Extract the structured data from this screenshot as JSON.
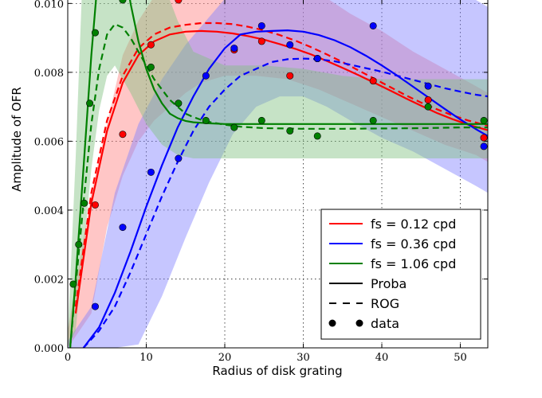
{
  "chart_data": {
    "type": "scatter",
    "xlabel": "Radius of disk grating",
    "ylabel": "Amplitude of OFR",
    "xlim": [
      0,
      53.5
    ],
    "ylim": [
      0,
      0.0101
    ],
    "x_ticks": [
      0,
      10,
      20,
      30,
      40,
      50
    ],
    "x_tick_labels": [
      "0",
      "10",
      "20",
      "30",
      "40",
      "50"
    ],
    "y_ticks": [
      0,
      0.002,
      0.004,
      0.006,
      0.008,
      0.01
    ],
    "y_tick_labels": [
      "0.000",
      "0.002",
      "0.004",
      "0.006",
      "0.008",
      "0.010"
    ],
    "grid": true,
    "legend_position": "lower-right",
    "legend": {
      "entries": [
        {
          "label": "fs = 0.12 cpd",
          "style": "line",
          "color": "#ff0000"
        },
        {
          "label": "fs = 0.36 cpd",
          "style": "line",
          "color": "#0000ff"
        },
        {
          "label": "fs = 1.06 cpd",
          "style": "line",
          "color": "#008000"
        },
        {
          "label": "Proba",
          "style": "solid",
          "color": "#000000"
        },
        {
          "label": "ROG",
          "style": "dashed",
          "color": "#000000"
        },
        {
          "label": "data",
          "style": "markers",
          "color": "#000000"
        }
      ]
    },
    "series": [
      {
        "color": "#ff0000",
        "band_color": "#ff8080",
        "data_x": [
          3.5,
          7,
          10.6,
          14.1,
          21.2,
          24.7,
          28.3,
          31.8,
          38.9,
          45.9,
          53
        ],
        "data_y": [
          0.00415,
          0.0062,
          0.0088,
          0.0101,
          0.00865,
          0.0089,
          0.0079,
          0.0084,
          0.00775,
          0.0072,
          0.0061
        ],
        "proba_x": [
          1,
          3,
          5,
          7,
          9,
          11,
          13,
          15,
          17,
          19,
          21,
          23,
          25,
          27,
          29,
          31,
          33,
          35,
          37,
          39,
          41,
          43,
          45,
          47,
          49,
          51,
          53.5
        ],
        "proba_y": [
          0.001,
          0.0042,
          0.0063,
          0.0077,
          0.0085,
          0.0089,
          0.0091,
          0.00918,
          0.0092,
          0.00918,
          0.00913,
          0.00905,
          0.00895,
          0.00882,
          0.00868,
          0.00852,
          0.00833,
          0.00813,
          0.00792,
          0.0077,
          0.00748,
          0.00725,
          0.00703,
          0.00682,
          0.00664,
          0.00648,
          0.00632
        ],
        "rog_x": [
          1,
          3,
          5,
          7,
          9,
          11,
          13,
          15,
          17,
          19,
          21,
          23,
          25,
          27,
          29,
          31,
          33,
          35,
          37,
          39,
          41,
          43,
          45,
          47,
          49,
          51,
          53.5
        ],
        "rog_y": [
          0.0012,
          0.0045,
          0.0066,
          0.0079,
          0.0087,
          0.0091,
          0.0093,
          0.00938,
          0.00943,
          0.00943,
          0.0094,
          0.00932,
          0.00922,
          0.00908,
          0.00892,
          0.00873,
          0.00852,
          0.0083,
          0.00806,
          0.00782,
          0.00758,
          0.00734,
          0.00712,
          0.00693,
          0.00675,
          0.0066,
          0.00645
        ],
        "band_x": [
          0,
          3,
          5,
          7,
          9,
          11,
          13,
          15,
          17,
          20,
          24,
          28,
          32,
          36,
          40,
          44,
          48,
          52,
          53.5
        ],
        "band_upper": [
          0.0005,
          0.0045,
          0.0065,
          0.0085,
          0.0095,
          0.0102,
          0.0107,
          0.0112,
          0.0115,
          0.0117,
          0.0117,
          0.0108,
          0.0103,
          0.0097,
          0.0092,
          0.0086,
          0.0081,
          0.0076,
          0.0074
        ],
        "band_lower": [
          0,
          0.001,
          0.0035,
          0.005,
          0.006,
          0.0066,
          0.007,
          0.0074,
          0.0077,
          0.0079,
          0.0079,
          0.0078,
          0.0075,
          0.0071,
          0.0067,
          0.0063,
          0.0059,
          0.0056,
          0.0054
        ]
      },
      {
        "color": "#0000ff",
        "band_color": "#8080ff",
        "data_x": [
          3.5,
          7,
          10.6,
          14.1,
          17.6,
          21.2,
          24.7,
          28.3,
          31.8,
          38.9,
          45.9,
          53
        ],
        "data_y": [
          0.0012,
          0.0035,
          0.0051,
          0.0055,
          0.0079,
          0.0087,
          0.00935,
          0.0088,
          0.0084,
          0.00935,
          0.0076,
          0.00585
        ],
        "proba_x": [
          2,
          4,
          6,
          8,
          10,
          12,
          14,
          16,
          18,
          20,
          22,
          24,
          26,
          28,
          30,
          32,
          34,
          36,
          38,
          40,
          42,
          44,
          46,
          48,
          50,
          52,
          53.5
        ],
        "proba_y": [
          0.0,
          0.0006,
          0.0016,
          0.0028,
          0.0041,
          0.0053,
          0.0064,
          0.0073,
          0.0081,
          0.0087,
          0.0091,
          0.00918,
          0.0092,
          0.00922,
          0.00918,
          0.00908,
          0.00893,
          0.00873,
          0.00848,
          0.0082,
          0.0079,
          0.00758,
          0.00726,
          0.00694,
          0.00663,
          0.00635,
          0.00615
        ],
        "rog_x": [
          2,
          4,
          6,
          8,
          10,
          12,
          14,
          16,
          18,
          20,
          22,
          24,
          26,
          28,
          30,
          32,
          34,
          36,
          38,
          40,
          42,
          44,
          46,
          48,
          50,
          52,
          53.5
        ],
        "rog_y": [
          0.0,
          0.0005,
          0.0012,
          0.0022,
          0.0033,
          0.0044,
          0.0054,
          0.0063,
          0.007,
          0.0075,
          0.0079,
          0.0081,
          0.0083,
          0.00838,
          0.0084,
          0.00838,
          0.00832,
          0.00822,
          0.00812,
          0.00802,
          0.0079,
          0.00778,
          0.00766,
          0.00754,
          0.00744,
          0.00735,
          0.0073
        ],
        "band_x": [
          0,
          3,
          6,
          9,
          12,
          15,
          18,
          21,
          24,
          27,
          30,
          33,
          36,
          40,
          44,
          48,
          52,
          53.5
        ],
        "band_upper": [
          0.0002,
          0.0012,
          0.0045,
          0.0065,
          0.0078,
          0.0088,
          0.0096,
          0.0104,
          0.0111,
          0.0117,
          0.0117,
          0.0116,
          0.0114,
          0.0111,
          0.0108,
          0.0105,
          0.0101,
          0.0099
        ],
        "band_lower": [
          0,
          0,
          0,
          0.0001,
          0.0015,
          0.0032,
          0.0048,
          0.0062,
          0.007,
          0.0073,
          0.0073,
          0.007,
          0.0066,
          0.0061,
          0.0057,
          0.0052,
          0.0047,
          0.0045
        ]
      },
      {
        "color": "#008000",
        "band_color": "#80c080",
        "data_x": [
          0.7,
          1.4,
          2.1,
          2.8,
          3.5,
          7,
          10.6,
          14.1,
          17.6,
          21.2,
          24.7,
          28.3,
          31.8,
          38.9,
          45.9,
          53
        ],
        "data_y": [
          0.00185,
          0.003,
          0.0042,
          0.0071,
          0.00915,
          0.0101,
          0.00815,
          0.0071,
          0.0066,
          0.0064,
          0.0066,
          0.0063,
          0.00615,
          0.0066,
          0.007,
          0.0066
        ],
        "proba_x": [
          0.3,
          1,
          2,
          3,
          4,
          5,
          6,
          7,
          8,
          9,
          10,
          11,
          12,
          13,
          14,
          15,
          16,
          18,
          20,
          22,
          25,
          30,
          35,
          40,
          45,
          50,
          53.5
        ],
        "proba_y": [
          0.0,
          0.002,
          0.0052,
          0.0085,
          0.0112,
          0.0128,
          0.0127,
          0.0114,
          0.01,
          0.0089,
          0.0081,
          0.0075,
          0.0071,
          0.0068,
          0.00667,
          0.00659,
          0.00655,
          0.00652,
          0.0065,
          0.0065,
          0.0065,
          0.0065,
          0.0065,
          0.0065,
          0.0065,
          0.0065,
          0.0065
        ],
        "rog_x": [
          0.3,
          1,
          2,
          3,
          4,
          5,
          6,
          7,
          8,
          9,
          10,
          11,
          12,
          13,
          14,
          15,
          16,
          17,
          18,
          20,
          22,
          25,
          30,
          35,
          40,
          45,
          50,
          53.5
        ],
        "rog_y": [
          0.0,
          0.0018,
          0.0042,
          0.0065,
          0.0081,
          0.0091,
          0.0094,
          0.0093,
          0.009,
          0.0086,
          0.0082,
          0.0078,
          0.0075,
          0.0072,
          0.007,
          0.0068,
          0.0067,
          0.00662,
          0.00656,
          0.00648,
          0.00642,
          0.00638,
          0.00636,
          0.00636,
          0.00637,
          0.00638,
          0.0064,
          0.0064
        ],
        "band_x": [
          0,
          1,
          2,
          3,
          4,
          5,
          6,
          8,
          10,
          12,
          14,
          16,
          20,
          25,
          30,
          35,
          40,
          45,
          50,
          53.5
        ],
        "band_upper": [
          0.0003,
          0.0055,
          0.0115,
          0.0125,
          0.0125,
          0.0125,
          0.0125,
          0.0125,
          0.0118,
          0.0107,
          0.0095,
          0.0086,
          0.0082,
          0.0082,
          0.0081,
          0.0079,
          0.0078,
          0.0078,
          0.0078,
          0.0078
        ],
        "band_lower": [
          0,
          0.0005,
          0.0028,
          0.0052,
          0.0069,
          0.0079,
          0.0082,
          0.0074,
          0.0065,
          0.0059,
          0.0056,
          0.0055,
          0.0055,
          0.0055,
          0.0055,
          0.0055,
          0.0055,
          0.0055,
          0.0055,
          0.0055
        ]
      }
    ]
  }
}
